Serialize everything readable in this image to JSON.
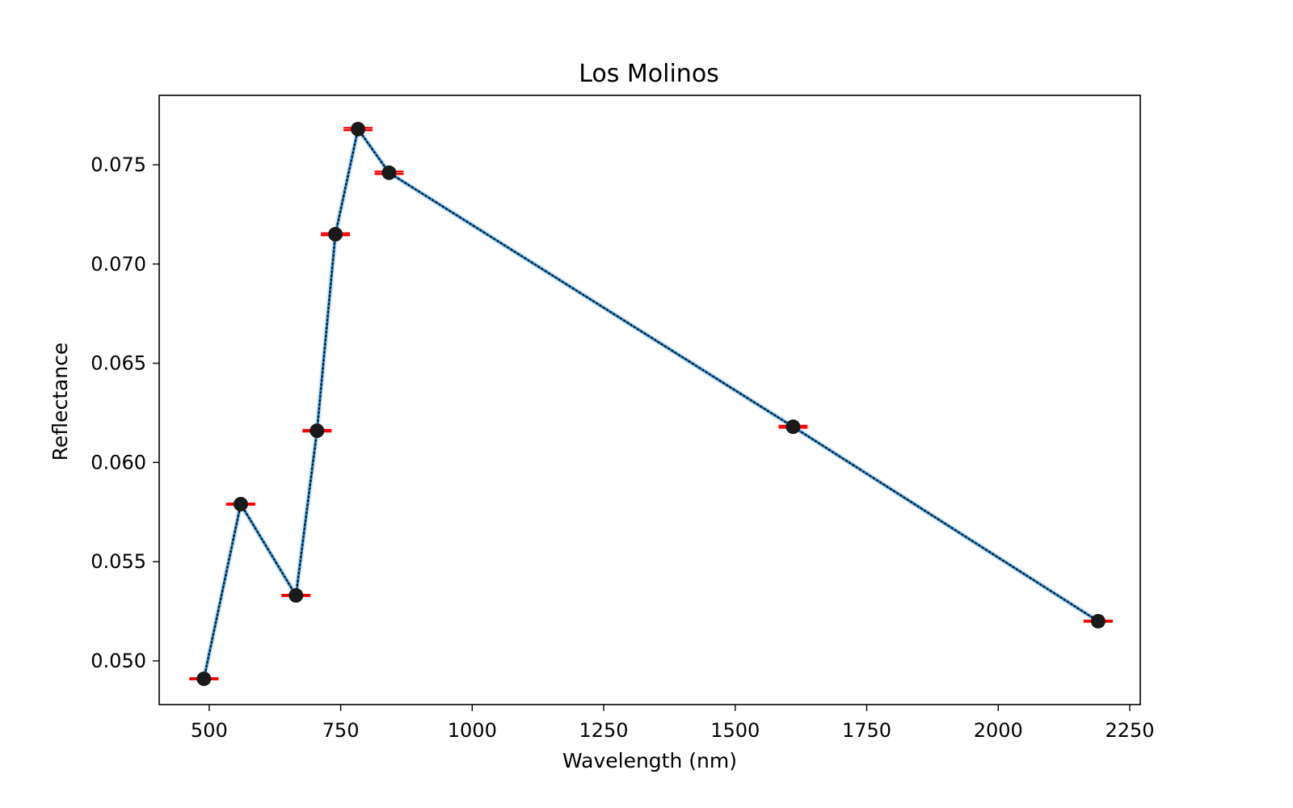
{
  "chart_data": {
    "type": "line",
    "title": "Los Molinos",
    "xlabel": "Wavelength (nm)",
    "ylabel": "Reflectance",
    "xlim": [
      405,
      2270
    ],
    "ylim": [
      0.0478,
      0.0785
    ],
    "xticks": [
      500,
      750,
      1000,
      1250,
      1500,
      1750,
      2000,
      2250
    ],
    "xtick_labels": [
      "500",
      "750",
      "1000",
      "1250",
      "1500",
      "1750",
      "2000",
      "2250"
    ],
    "yticks": [
      0.05,
      0.055,
      0.06,
      0.065,
      0.07,
      0.075
    ],
    "ytick_labels": [
      "0.050",
      "0.055",
      "0.060",
      "0.065",
      "0.070",
      "0.075"
    ],
    "grid": false,
    "series": [
      {
        "x": [
          490,
          560,
          665,
          705,
          740,
          783,
          842,
          1610,
          2190
        ],
        "y": [
          0.0491,
          0.0579,
          0.0533,
          0.0616,
          0.0715,
          0.0768,
          0.0746,
          0.0618,
          0.052
        ],
        "yerr": [
          3e-05,
          3e-05,
          3e-05,
          4e-05,
          5e-05,
          6e-05,
          6e-05,
          5e-05,
          3e-05
        ],
        "line_color": "#1f77b4",
        "dotted_overlay_color": "#000000",
        "marker_color": "#1a1a1a",
        "errorbar_color": "#ff0000"
      }
    ]
  }
}
